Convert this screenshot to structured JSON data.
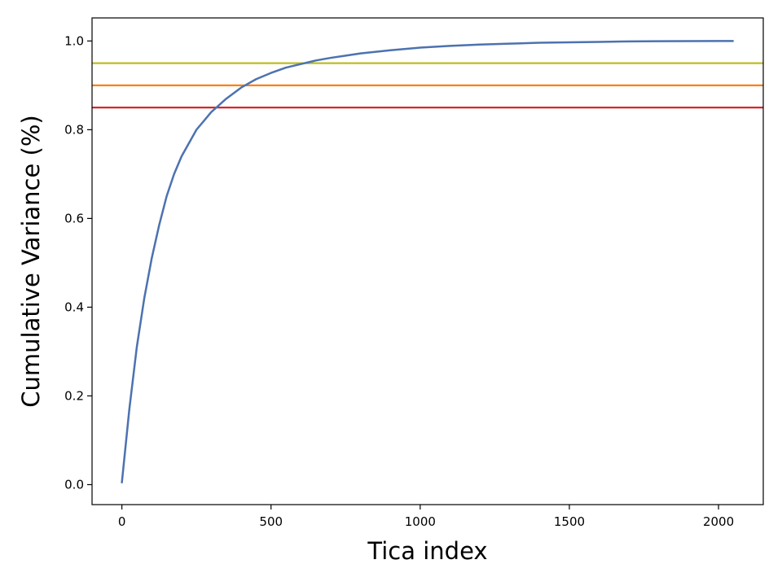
{
  "chart_data": {
    "type": "line",
    "title": "",
    "xlabel": "Tica index",
    "ylabel": "Cumulative Variance (%)",
    "xlim": [
      -100,
      2150
    ],
    "ylim": [
      -0.045,
      1.052
    ],
    "xticks": [
      0,
      500,
      1000,
      1500,
      2000
    ],
    "xtick_labels": [
      "0",
      "500",
      "1000",
      "1500",
      "2000"
    ],
    "yticks": [
      0.0,
      0.2,
      0.4,
      0.6,
      0.8,
      1.0
    ],
    "ytick_labels": [
      "0.0",
      "0.2",
      "0.4",
      "0.6",
      "0.8",
      "1.0"
    ],
    "grid": false,
    "series": [
      {
        "color": "#4c72b0",
        "x": [
          0,
          25,
          50,
          75,
          100,
          125,
          150,
          175,
          200,
          250,
          300,
          350,
          400,
          450,
          500,
          550,
          600,
          650,
          700,
          750,
          800,
          900,
          1000,
          1100,
          1200,
          1300,
          1400,
          1500,
          1600,
          1700,
          1800,
          1900,
          2000,
          2048
        ],
        "y": [
          0.005,
          0.17,
          0.31,
          0.42,
          0.51,
          0.585,
          0.65,
          0.7,
          0.74,
          0.8,
          0.84,
          0.87,
          0.895,
          0.914,
          0.928,
          0.94,
          0.948,
          0.956,
          0.962,
          0.967,
          0.972,
          0.979,
          0.985,
          0.989,
          0.992,
          0.994,
          0.996,
          0.997,
          0.998,
          0.999,
          0.9995,
          0.9998,
          1.0,
          1.0
        ]
      }
    ],
    "hlines": [
      {
        "y": 0.95,
        "color": "#bcbd22"
      },
      {
        "y": 0.9,
        "color": "#ff7f0e"
      },
      {
        "y": 0.85,
        "color": "#d62728"
      }
    ]
  }
}
